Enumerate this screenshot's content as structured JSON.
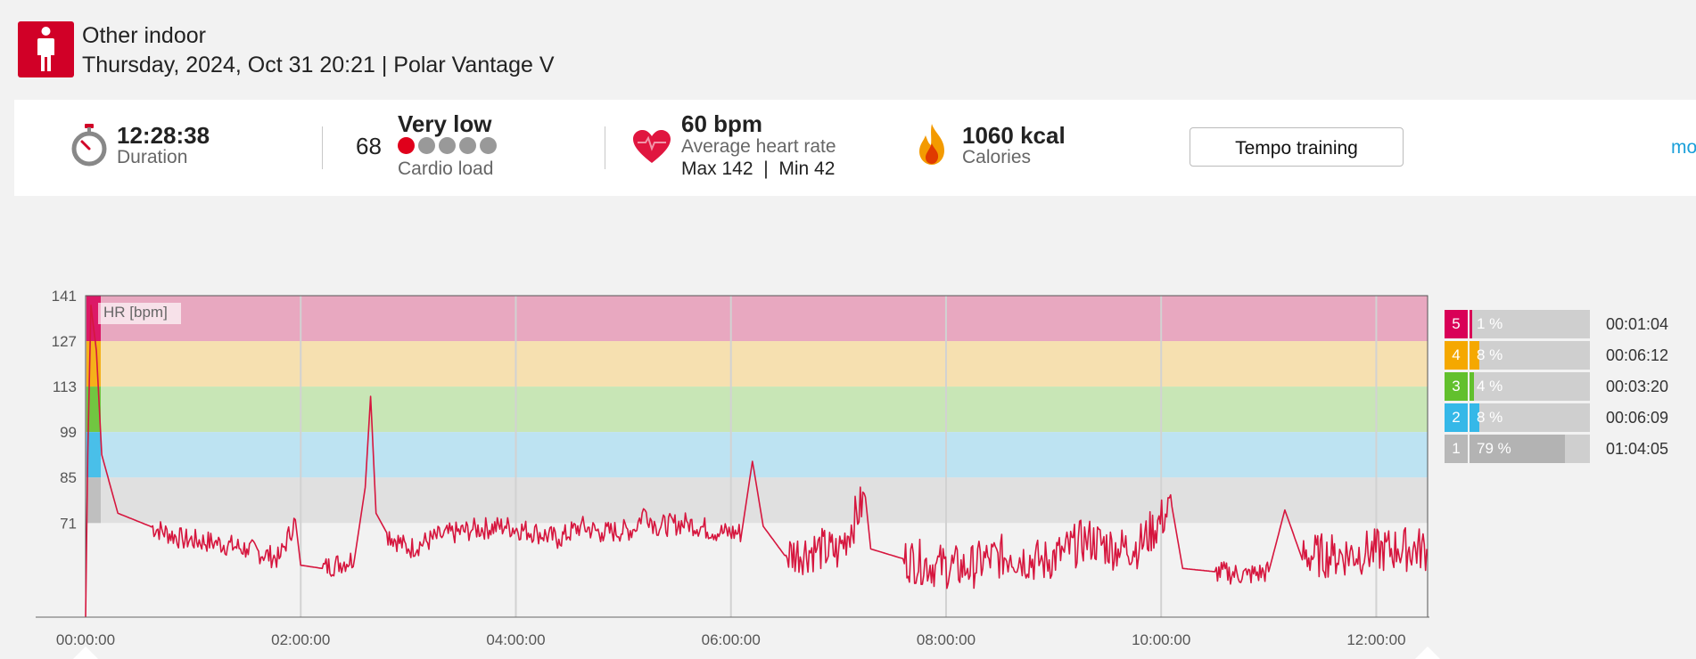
{
  "header": {
    "sport": "Other indoor",
    "subtitle": "Thursday, 2024, Oct 31 20:21 | Polar Vantage V",
    "icon": "person-standing-icon",
    "accent": "#d10027"
  },
  "summary": {
    "duration": {
      "value": "12:28:38",
      "label": "Duration",
      "icon": "stopwatch-icon"
    },
    "cardio_load": {
      "value": "68",
      "level": "Very low",
      "label": "Cardio load",
      "dots_active": 1,
      "dots_total": 5
    },
    "heart_rate": {
      "value": "60 bpm",
      "label": "Average heart rate",
      "max": "Max 142",
      "sep": "|",
      "min": "Min 42",
      "icon": "heart-icon"
    },
    "calories": {
      "value": "1060 kcal",
      "label": "Calories",
      "icon": "flame-icon"
    },
    "benefit_button": "Tempo training",
    "more_link": "mo"
  },
  "chart_data": {
    "type": "line",
    "series": [
      {
        "values": [
          [
            0.0,
            42
          ],
          [
            0.02,
            92
          ],
          [
            0.05,
            138
          ],
          [
            0.1,
            124
          ],
          [
            0.15,
            92
          ],
          [
            0.3,
            74
          ],
          [
            0.6,
            70
          ],
          [
            0.9,
            66
          ],
          [
            1.2,
            65
          ],
          [
            1.5,
            63
          ],
          [
            1.8,
            60
          ],
          [
            1.95,
            72
          ],
          [
            2.0,
            58
          ],
          [
            2.2,
            57
          ],
          [
            2.5,
            60
          ],
          [
            2.6,
            82
          ],
          [
            2.65,
            110
          ],
          [
            2.7,
            74
          ],
          [
            2.8,
            68
          ],
          [
            3.0,
            63
          ],
          [
            3.3,
            67
          ],
          [
            3.6,
            69
          ],
          [
            3.9,
            70
          ],
          [
            4.2,
            68
          ],
          [
            4.4,
            66
          ],
          [
            4.6,
            70
          ],
          [
            4.8,
            68
          ],
          [
            5.1,
            69
          ],
          [
            5.2,
            75
          ],
          [
            5.3,
            70
          ],
          [
            5.6,
            71
          ],
          [
            5.9,
            68
          ],
          [
            6.1,
            68
          ],
          [
            6.2,
            90
          ],
          [
            6.3,
            70
          ],
          [
            6.5,
            61
          ],
          [
            6.8,
            63
          ],
          [
            7.0,
            62
          ],
          [
            7.25,
            79
          ],
          [
            7.3,
            63
          ],
          [
            7.6,
            60
          ],
          [
            7.9,
            58
          ],
          [
            8.2,
            57
          ],
          [
            8.4,
            60
          ],
          [
            8.6,
            61
          ],
          [
            8.9,
            59
          ],
          [
            9.1,
            62
          ],
          [
            9.3,
            66
          ],
          [
            9.6,
            63
          ],
          [
            9.8,
            64
          ],
          [
            10.1,
            76
          ],
          [
            10.2,
            57
          ],
          [
            10.5,
            56
          ],
          [
            10.8,
            55
          ],
          [
            11.0,
            56
          ],
          [
            11.15,
            75
          ],
          [
            11.3,
            61
          ],
          [
            11.6,
            61
          ],
          [
            11.9,
            62
          ],
          [
            12.2,
            63
          ],
          [
            12.47,
            63
          ]
        ]
      }
    ],
    "y_ticks": [
      141,
      127,
      113,
      99,
      85,
      71
    ],
    "x_tick_labels": [
      "00:00:00",
      "02:00:00",
      "04:00:00",
      "06:00:00",
      "08:00:00",
      "10:00:00",
      "12:00:00"
    ],
    "x_ticks_hours": [
      0,
      2,
      4,
      6,
      8,
      10,
      12
    ],
    "xlim": [
      0,
      12.4772
    ],
    "ylim": [
      42,
      141
    ],
    "legend_label": "HR [bpm]",
    "zones": [
      {
        "zone": "5",
        "from": 127,
        "to": 141,
        "color": "#e8a8c0",
        "marker": "#d90057"
      },
      {
        "zone": "4",
        "from": 113,
        "to": 127,
        "color": "#f6e0b0",
        "marker": "#f5a800"
      },
      {
        "zone": "3",
        "from": 99,
        "to": 113,
        "color": "#c8e6b6",
        "marker": "#62c02d"
      },
      {
        "zone": "2",
        "from": 85,
        "to": 99,
        "color": "#bde3f2",
        "marker": "#35b8e8"
      },
      {
        "zone": "1",
        "from": 71,
        "to": 85,
        "color": "#e0e0e0",
        "marker": "#b8b8b8"
      }
    ],
    "line_color": "#d6163e"
  },
  "zone_table": [
    {
      "zone": "5",
      "pct": "1 %",
      "fill": 0.01,
      "time": "00:01:04",
      "color": "#d90057"
    },
    {
      "zone": "4",
      "pct": "8 %",
      "fill": 0.08,
      "time": "00:06:12",
      "color": "#f5a800"
    },
    {
      "zone": "3",
      "pct": "4 %",
      "fill": 0.04,
      "time": "00:03:20",
      "color": "#62c02d"
    },
    {
      "zone": "2",
      "pct": "8 %",
      "fill": 0.08,
      "time": "00:06:09",
      "color": "#35b8e8"
    },
    {
      "zone": "1",
      "pct": "79 %",
      "fill": 0.79,
      "time": "01:04:05",
      "color": "#b8b8b8"
    }
  ]
}
